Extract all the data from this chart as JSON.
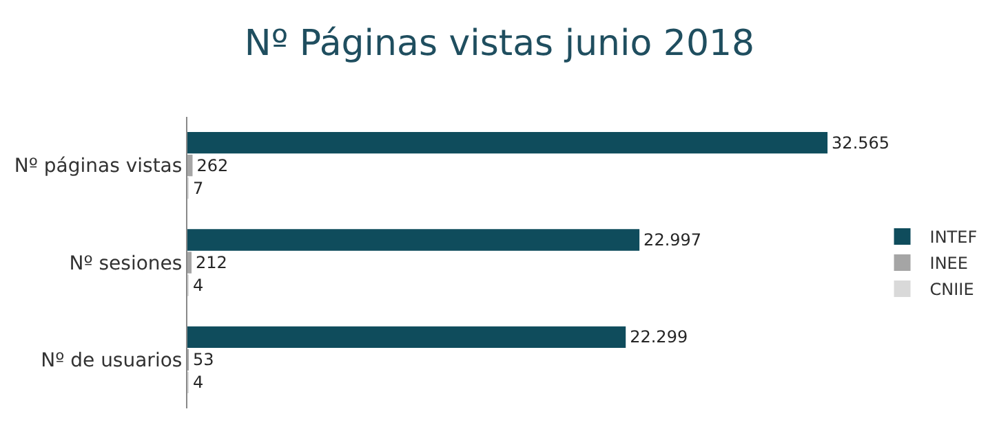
{
  "chart_data": {
    "type": "bar",
    "orientation": "horizontal",
    "title": "Nº Páginas vistas junio 2018",
    "categories": [
      "Nº páginas vistas",
      "Nº sesiones",
      "Nº de usuarios"
    ],
    "series": [
      {
        "name": "INTEF",
        "color": "#0f4c5c",
        "values": [
          32565,
          22997,
          22299
        ],
        "value_labels": [
          "32.565",
          "22.997",
          "22.299"
        ]
      },
      {
        "name": "INEE",
        "color": "#a5a5a5",
        "values": [
          262,
          212,
          53
        ],
        "value_labels": [
          "262",
          "212",
          "53"
        ]
      },
      {
        "name": "CNIIE",
        "color": "#d9d9d9",
        "values": [
          7,
          4,
          4
        ],
        "value_labels": [
          "7",
          "4",
          "4"
        ]
      }
    ],
    "tick_labels": "y",
    "legend": "right"
  }
}
